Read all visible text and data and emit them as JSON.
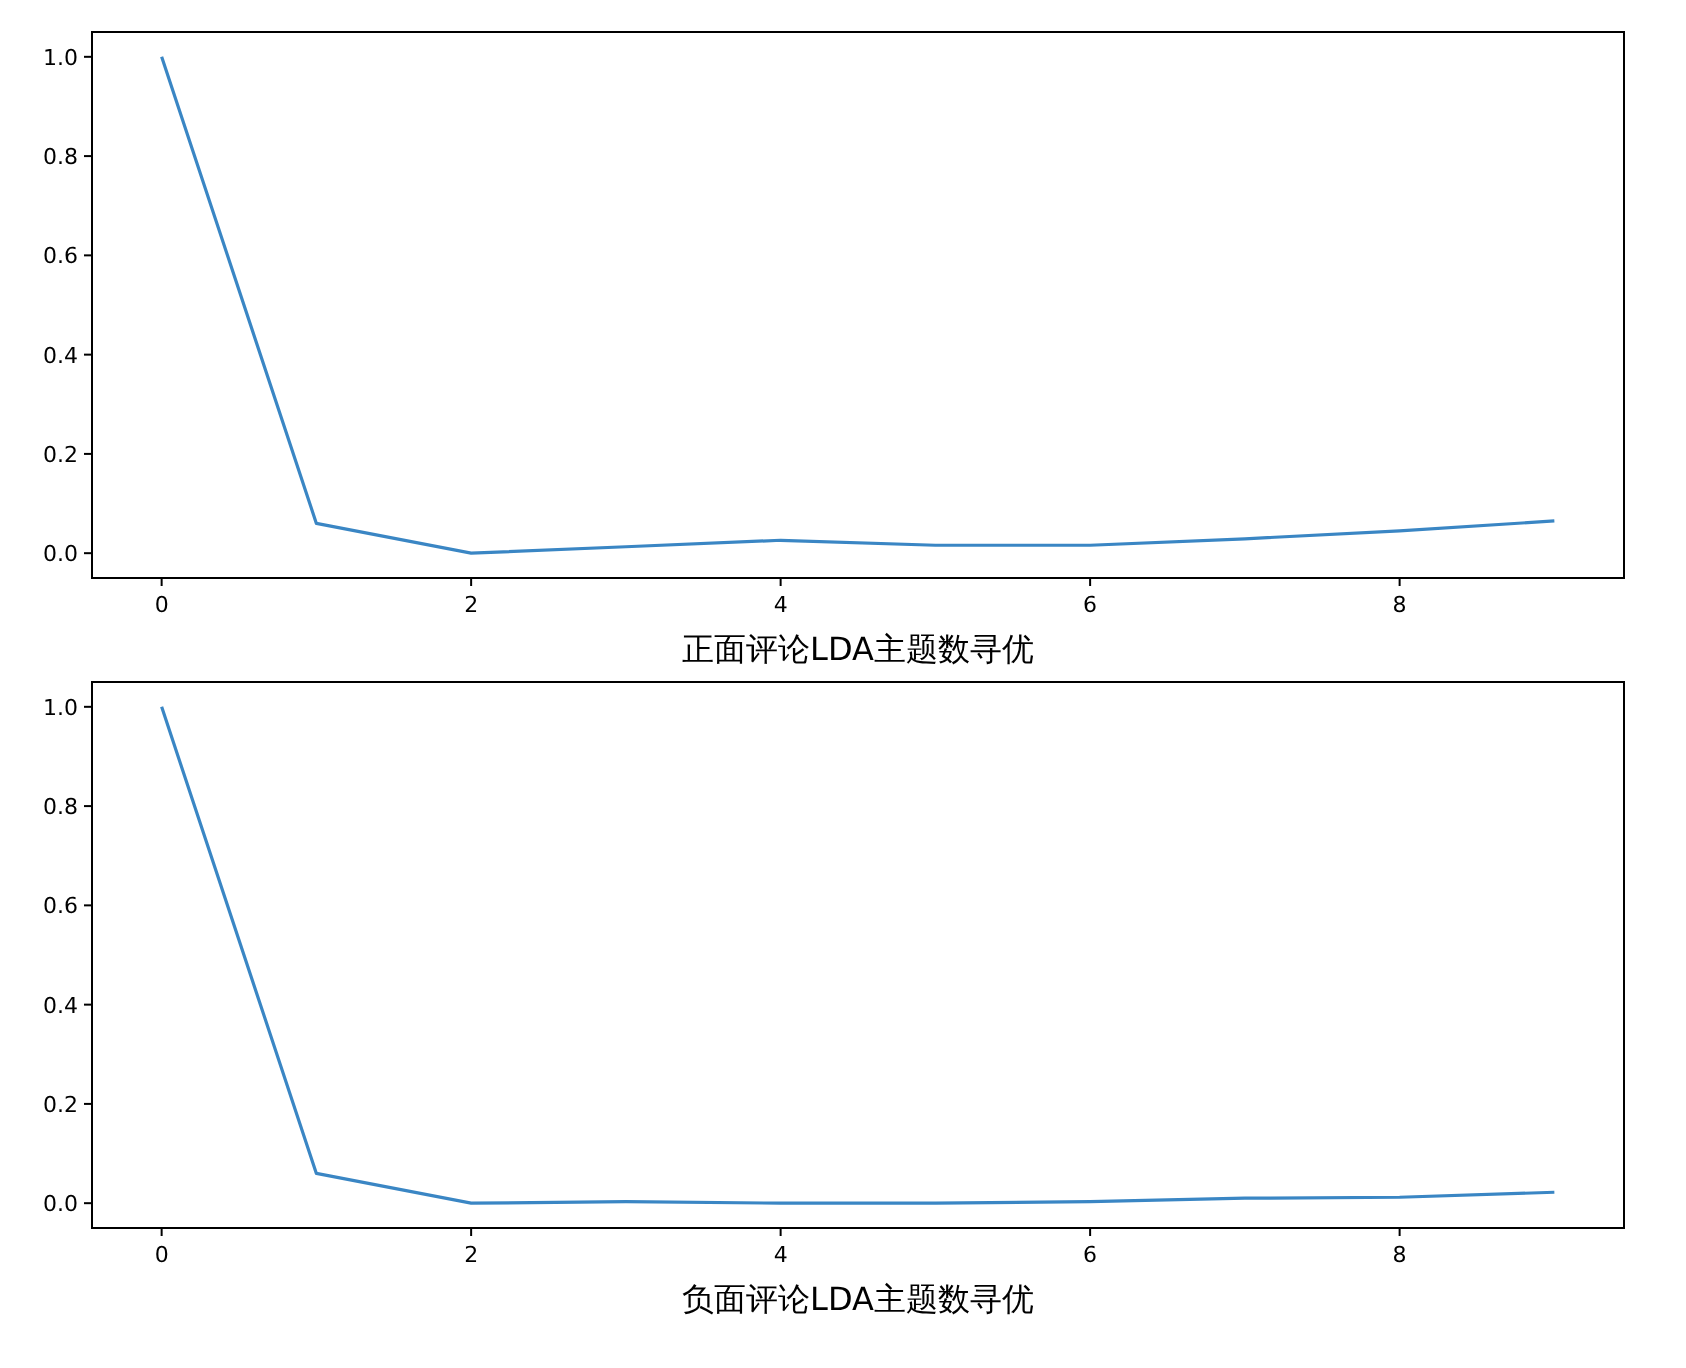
{
  "chart_data": [
    {
      "type": "line",
      "xlabel": "正面评论LDA主题数寻优",
      "x": [
        0,
        1,
        2,
        3,
        4,
        5,
        6,
        7,
        8,
        9
      ],
      "series": [
        {
          "color": "#3a86c4",
          "values": [
            1.0,
            0.06,
            0.0,
            0.013,
            0.026,
            0.016,
            0.016,
            0.029,
            0.045,
            0.065
          ]
        }
      ],
      "xlim": [
        -0.45,
        9.45
      ],
      "ylim": [
        -0.05,
        1.05
      ],
      "xticks": [
        0,
        2,
        4,
        6,
        8
      ],
      "yticks": [
        {
          "value": 0,
          "label": "0.0"
        },
        {
          "value": 0.2,
          "label": "0.2"
        },
        {
          "value": 0.4,
          "label": "0.4"
        },
        {
          "value": 0.6,
          "label": "0.6"
        },
        {
          "value": 0.8,
          "label": "0.8"
        },
        {
          "value": 1,
          "label": "1.0"
        }
      ],
      "grid": false
    },
    {
      "type": "line",
      "xlabel": "负面评论LDA主题数寻优",
      "x": [
        0,
        1,
        2,
        3,
        4,
        5,
        6,
        7,
        8,
        9
      ],
      "series": [
        {
          "color": "#3a86c4",
          "values": [
            1.0,
            0.06,
            0.0,
            0.003,
            0.0,
            0.0,
            0.003,
            0.01,
            0.012,
            0.022
          ]
        }
      ],
      "xlim": [
        -0.45,
        9.45
      ],
      "ylim": [
        -0.05,
        1.05
      ],
      "xticks": [
        0,
        2,
        4,
        6,
        8
      ],
      "yticks": [
        {
          "value": 0,
          "label": "0.0"
        },
        {
          "value": 0.2,
          "label": "0.2"
        },
        {
          "value": 0.4,
          "label": "0.4"
        },
        {
          "value": 0.6,
          "label": "0.6"
        },
        {
          "value": 0.8,
          "label": "0.8"
        },
        {
          "value": 1,
          "label": "1.0"
        }
      ],
      "grid": false
    }
  ]
}
